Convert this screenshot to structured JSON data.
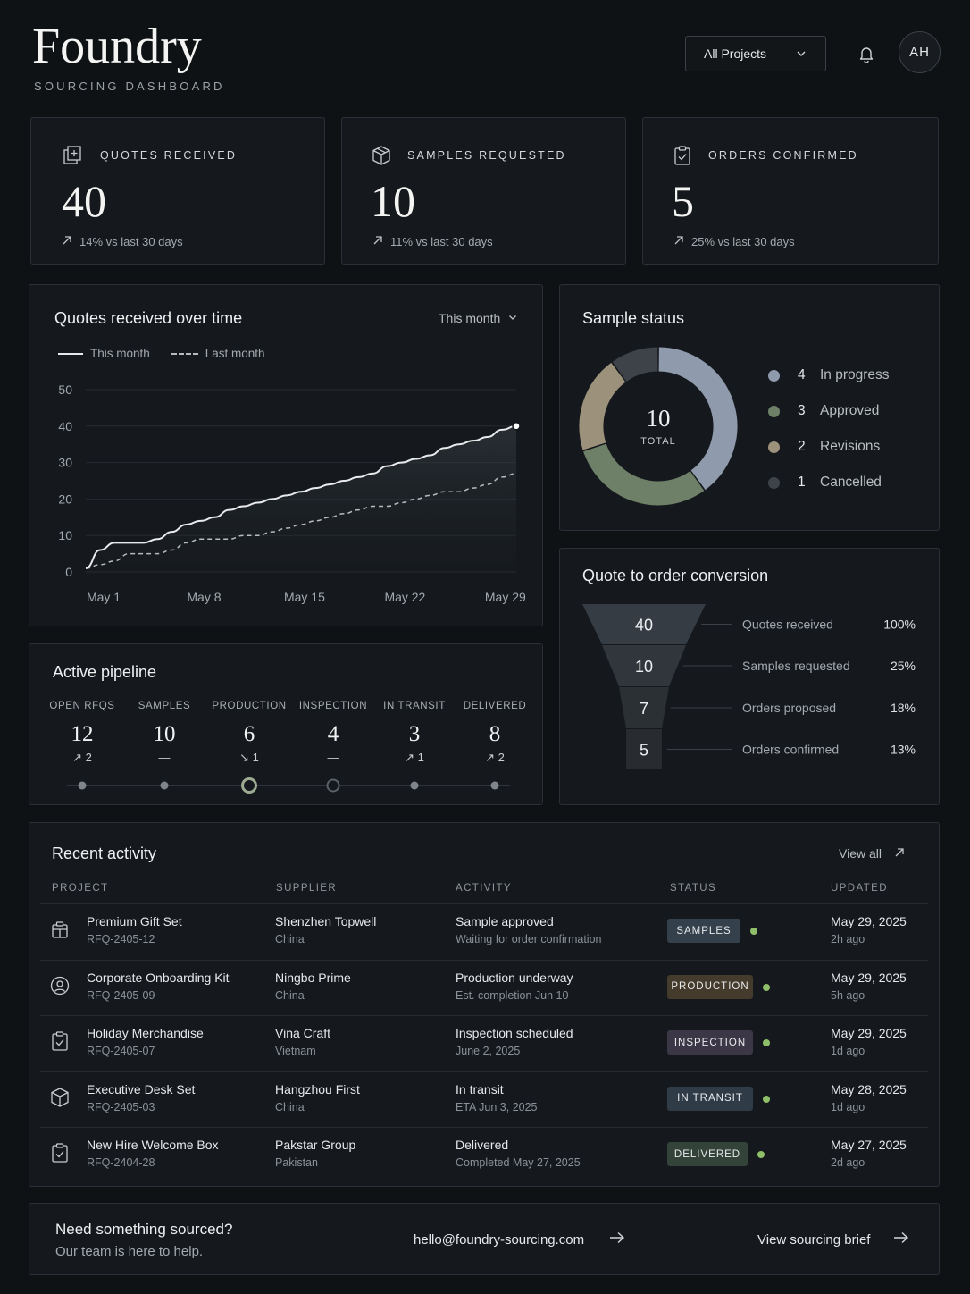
{
  "header": {
    "brand": "Foundry",
    "subtitle": "SOURCING DASHBOARD",
    "project_select": "All Projects",
    "avatar_initials": "AH"
  },
  "kpis": [
    {
      "label": "QUOTES RECEIVED",
      "value": "40",
      "trend": "14% vs last 30 days",
      "icon": "document-add-icon"
    },
    {
      "label": "SAMPLES REQUESTED",
      "value": "10",
      "trend": "11% vs last 30 days",
      "icon": "box-icon"
    },
    {
      "label": "ORDERS CONFIRMED",
      "value": "5",
      "trend": "25% vs last 30 days",
      "icon": "clipboard-check-icon"
    }
  ],
  "quotes_chart": {
    "title": "Quotes received over time",
    "range_select": "This month",
    "legend_this": "This month",
    "legend_last": "Last month"
  },
  "chart_data": {
    "type": "line",
    "title": "Quotes received over time",
    "x_ticks": [
      "May 1",
      "May 8",
      "May 15",
      "May 22",
      "May 29"
    ],
    "y_ticks": [
      "0",
      "10",
      "20",
      "30",
      "40",
      "50"
    ],
    "ylim": [
      0,
      50
    ],
    "xlim": [
      1,
      31
    ],
    "series": [
      {
        "name": "This month",
        "style": "solid",
        "color": "#e8eaec",
        "x": [
          1,
          2,
          3,
          4,
          5,
          6,
          7,
          8,
          9,
          10,
          11,
          12,
          13,
          14,
          15,
          16,
          17,
          18,
          19,
          20,
          21,
          22,
          23,
          24,
          25,
          26,
          27,
          28,
          29,
          30,
          31
        ],
        "values": [
          1,
          6,
          8,
          8,
          8,
          9,
          11,
          13,
          14,
          15,
          17,
          18,
          19,
          20,
          21,
          22,
          23,
          24,
          25,
          26,
          27,
          29,
          30,
          31,
          32,
          34,
          35,
          36,
          37,
          39,
          40
        ]
      },
      {
        "name": "Last month",
        "style": "dashed",
        "color": "#b8bcc0",
        "x": [
          1,
          2,
          3,
          4,
          5,
          6,
          7,
          8,
          9,
          10,
          11,
          12,
          13,
          14,
          15,
          16,
          17,
          18,
          19,
          20,
          21,
          22,
          23,
          24,
          25,
          26,
          27,
          28,
          29,
          30,
          31
        ],
        "values": [
          1,
          2,
          3,
          5,
          5,
          5,
          6,
          8,
          9,
          9,
          9,
          10,
          10,
          11,
          12,
          13,
          14,
          15,
          16,
          17,
          18,
          18,
          19,
          20,
          21,
          22,
          22,
          23,
          24,
          26,
          27
        ]
      }
    ]
  },
  "sample_status": {
    "title": "Sample status",
    "total": "10",
    "total_label": "TOTAL",
    "items": [
      {
        "count": "4",
        "label": "In progress",
        "value": 4,
        "color": "#8f9bad"
      },
      {
        "count": "3",
        "label": "Approved",
        "value": 3,
        "color": "#6e8068"
      },
      {
        "count": "2",
        "label": "Revisions",
        "value": 2,
        "color": "#9c917a"
      },
      {
        "count": "1",
        "label": "Cancelled",
        "value": 1,
        "color": "#3d4349"
      }
    ]
  },
  "conversion": {
    "title": "Quote to order conversion",
    "stages": [
      {
        "value": "40",
        "label": "Quotes received",
        "pct": "100%"
      },
      {
        "value": "10",
        "label": "Samples requested",
        "pct": "25%"
      },
      {
        "value": "7",
        "label": "Orders proposed",
        "pct": "18%"
      },
      {
        "value": "5",
        "label": "Orders confirmed",
        "pct": "13%"
      }
    ]
  },
  "pipeline": {
    "title": "Active pipeline",
    "stages": [
      {
        "label": "OPEN RFQS",
        "value": "12",
        "delta": "↗ 2"
      },
      {
        "label": "SAMPLES",
        "value": "10",
        "delta": "—"
      },
      {
        "label": "PRODUCTION",
        "value": "6",
        "delta": "↘ 1"
      },
      {
        "label": "INSPECTION",
        "value": "4",
        "delta": "—"
      },
      {
        "label": "IN TRANSIT",
        "value": "3",
        "delta": "↗ 1"
      },
      {
        "label": "DELIVERED",
        "value": "8",
        "delta": "↗ 2"
      }
    ]
  },
  "activity": {
    "title": "Recent activity",
    "view_all": "View all",
    "columns": [
      "PROJECT",
      "SUPPLIER",
      "ACTIVITY",
      "STATUS",
      "UPDATED"
    ],
    "rows": [
      {
        "icon": "gift-box-icon",
        "project": "Premium Gift Set",
        "rfq": "RFQ-2405-12",
        "supplier": "Shenzhen Topwell",
        "country": "China",
        "activity": "Sample approved",
        "detail": "Waiting for order confirmation",
        "status": "SAMPLES",
        "status_color": "#34404b",
        "date": "May 29, 2025",
        "ago": "2h ago"
      },
      {
        "icon": "user-circle-icon",
        "project": "Corporate Onboarding Kit",
        "rfq": "RFQ-2405-09",
        "supplier": "Ningbo Prime",
        "country": "China",
        "activity": "Production underway",
        "detail": "Est. completion Jun 10",
        "status": "PRODUCTION",
        "status_color": "#453b2c",
        "date": "May 29, 2025",
        "ago": "5h ago"
      },
      {
        "icon": "clipboard-check-icon",
        "project": "Holiday Merchandise",
        "rfq": "RFQ-2405-07",
        "supplier": "Vina Craft",
        "country": "Vietnam",
        "activity": "Inspection scheduled",
        "detail": "June 2, 2025",
        "status": "INSPECTION",
        "status_color": "#3b3746",
        "date": "May 29, 2025",
        "ago": "1d ago"
      },
      {
        "icon": "box-icon",
        "project": "Executive Desk Set",
        "rfq": "RFQ-2405-03",
        "supplier": "Hangzhou First",
        "country": "China",
        "activity": "In transit",
        "detail": "ETA Jun 3, 2025",
        "status": "IN TRANSIT",
        "status_color": "#2f3c48",
        "date": "May 28, 2025",
        "ago": "1d ago"
      },
      {
        "icon": "clipboard-check-icon",
        "project": "New Hire Welcome Box",
        "rfq": "RFQ-2404-28",
        "supplier": "Pakstar Group",
        "country": "Pakistan",
        "activity": "Delivered",
        "detail": "Completed May 27, 2025",
        "status": "DELIVERED",
        "status_color": "#34433a",
        "date": "May 27, 2025",
        "ago": "2d ago"
      }
    ]
  },
  "footer": {
    "title": "Need something sourced?",
    "subtitle": "Our team is here to help.",
    "email": "hello@foundry-sourcing.com",
    "brief": "View sourcing brief"
  }
}
